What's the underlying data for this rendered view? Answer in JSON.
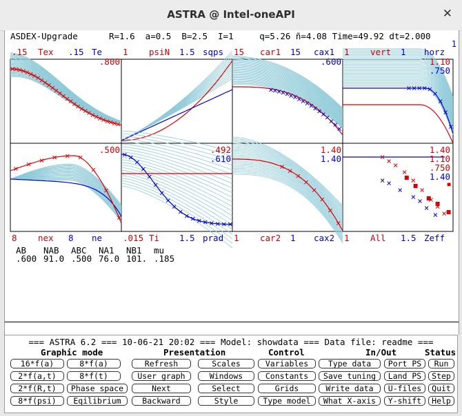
{
  "window": {
    "title": "ASTRA @ Intel-oneAPI",
    "close_glyph": "✕"
  },
  "header": {
    "line": "ASDEX-Upgrade      R=1.6  a=0.5  B=2.5  I=1     q=5.26 ñ=4.08 Time=49.92 dt=2.000",
    "right_tag": "1"
  },
  "top_labels": [
    {
      "text": ".15",
      "color": "#cc0000"
    },
    {
      "text": "Tex",
      "color": "#cc0000"
    },
    {
      "text": ".15",
      "color": "#0000cc"
    },
    {
      "text": "Te",
      "color": "#0000cc"
    },
    {
      "text": "1",
      "color": "#cc0000"
    },
    {
      "text": "psiN",
      "color": "#cc0000"
    },
    {
      "text": "1.5",
      "color": "#0000cc"
    },
    {
      "text": "sqps",
      "color": "#0000cc"
    },
    {
      "text": "15",
      "color": "#cc0000"
    },
    {
      "text": "car1",
      "color": "#cc0000"
    },
    {
      "text": "15",
      "color": "#0000cc"
    },
    {
      "text": "cax1",
      "color": "#0000cc"
    },
    {
      "text": "1",
      "color": "#cc0000"
    },
    {
      "text": "vert",
      "color": "#cc0000"
    },
    {
      "text": "1",
      "color": "#0000cc"
    },
    {
      "text": "horz",
      "color": "#0000cc"
    }
  ],
  "bottom_labels": [
    {
      "text": "8",
      "color": "#cc0000"
    },
    {
      "text": "nex",
      "color": "#cc0000"
    },
    {
      "text": "8",
      "color": "#0000cc"
    },
    {
      "text": "ne",
      "color": "#0000cc"
    },
    {
      "text": ".015",
      "color": "#cc0000"
    },
    {
      "text": "Ti",
      "color": "#cc0000"
    },
    {
      "text": "1.5",
      "color": "#0000cc"
    },
    {
      "text": "prad",
      "color": "#0000cc"
    },
    {
      "text": "1",
      "color": "#cc0000"
    },
    {
      "text": "car2",
      "color": "#cc0000"
    },
    {
      "text": "1",
      "color": "#0000cc"
    },
    {
      "text": "cax2",
      "color": "#0000cc"
    },
    {
      "text": "1",
      "color": "#cc0000"
    },
    {
      "text": "All",
      "color": "#cc0000"
    },
    {
      "text": "1.5",
      "color": "#0000cc"
    },
    {
      "text": "Zeff",
      "color": "#0000cc"
    }
  ],
  "plot_values": [
    {
      "text": ".800",
      "color": "#cc0000"
    },
    {
      "text": ".600",
      "color": "#0000cc"
    },
    {
      "text": "1.10",
      "color": "#cc0000"
    },
    {
      "text": ".750",
      "color": "#0000cc"
    },
    {
      "text": ".500",
      "color": "#cc0000"
    },
    {
      "text": ".492",
      "color": "#cc0000"
    },
    {
      "text": ".610",
      "color": "#0000cc"
    },
    {
      "text": "1.40",
      "color": "#cc0000"
    },
    {
      "text": "1.40",
      "color": "#0000cc"
    },
    {
      "text": "1.40",
      "color": "#cc0000"
    },
    {
      "text": "1.10",
      "color": "#cc0000"
    },
    {
      "text": ".750",
      "color": "#cc0000"
    },
    {
      "text": "1.40",
      "color": "#0000cc"
    }
  ],
  "marker_glyph": "×",
  "table": {
    "headers": [
      "AB",
      "NAB",
      "ABC",
      "NA1",
      "NB1",
      "mu"
    ],
    "values": [
      ".600",
      "91.0",
      ".500",
      "76.0",
      "101.",
      ".185"
    ]
  },
  "status_line": "=== ASTRA 6.2 === 10-06-21 20:02 === Model: showdata === Data file: readme ===",
  "section_heads": [
    "Graphic mode",
    "Presentation",
    "Control",
    "In/Out",
    "Status"
  ],
  "buttons": {
    "graphic": [
      "16*f(a)",
      "8*f(a)",
      "2*f(a,t)",
      "8*f(t)",
      "2*f(R,t)",
      "Phase space",
      "8*f(psi)",
      "Eqilibrium"
    ],
    "presentation": [
      "Refresh",
      "User graph",
      "Next",
      "Backward"
    ],
    "scales": [
      "Scales",
      "Windows",
      "Select",
      "Style"
    ],
    "control": [
      "Variables",
      "Constants",
      "Grids",
      "Type model"
    ],
    "inout": [
      "Type data",
      "Save tuning",
      "Write data",
      "What X-axis"
    ],
    "ports": [
      "Port_PS",
      "Land_PS",
      "U-files",
      "Y-shift"
    ],
    "status": [
      "Run",
      "Step",
      "Quit",
      "Help"
    ]
  }
}
